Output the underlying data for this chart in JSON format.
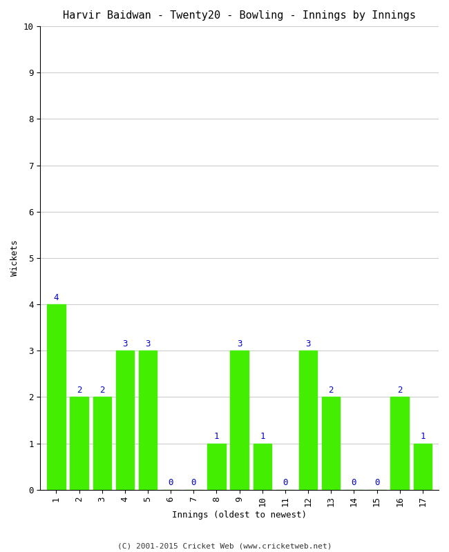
{
  "title": "Harvir Baidwan - Twenty20 - Bowling - Innings by Innings",
  "xlabel": "Innings (oldest to newest)",
  "ylabel": "Wickets",
  "innings": [
    1,
    2,
    3,
    4,
    5,
    6,
    7,
    8,
    9,
    10,
    11,
    12,
    13,
    14,
    15,
    16,
    17
  ],
  "wickets": [
    4,
    2,
    2,
    3,
    3,
    0,
    0,
    1,
    3,
    1,
    0,
    3,
    2,
    0,
    0,
    2,
    1
  ],
  "bar_color": "#44ee00",
  "bar_edge_color": "#44ee00",
  "label_color": "#0000cc",
  "ylim": [
    0,
    10
  ],
  "yticks": [
    0,
    1,
    2,
    3,
    4,
    5,
    6,
    7,
    8,
    9,
    10
  ],
  "background_color": "#ffffff",
  "grid_color": "#cccccc",
  "title_fontsize": 11,
  "axis_label_fontsize": 9,
  "tick_label_fontsize": 9,
  "bar_label_fontsize": 9,
  "footer": "(C) 2001-2015 Cricket Web (www.cricketweb.net)",
  "footer_fontsize": 8
}
